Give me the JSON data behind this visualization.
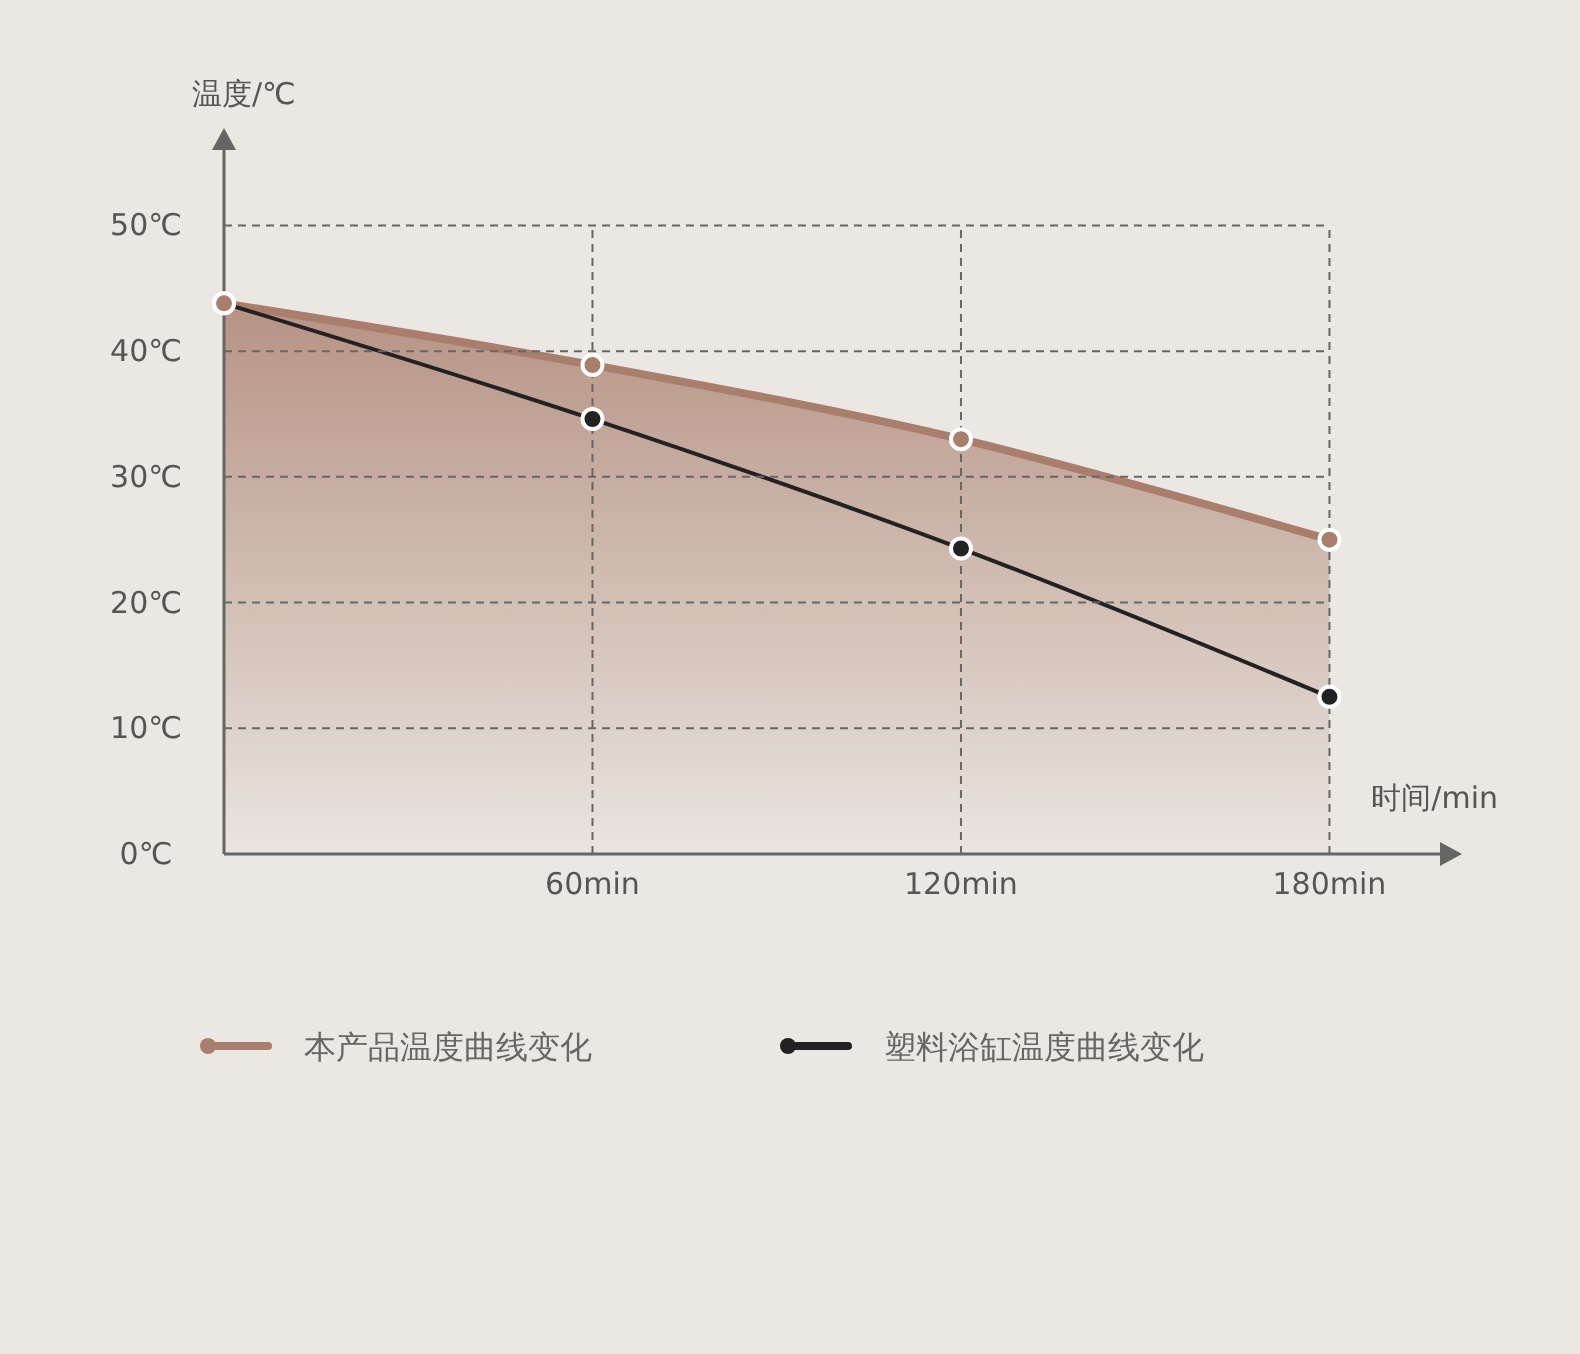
{
  "chart_data": {
    "type": "line",
    "ylabel": "温度/℃",
    "xlabel": "时间/min",
    "x": [
      0,
      60,
      120,
      180
    ],
    "xlim": [
      0,
      198
    ],
    "ylim": [
      0,
      56
    ],
    "xticks": [
      {
        "value": 0,
        "label": null
      },
      {
        "value": 60,
        "label": "60min"
      },
      {
        "value": 120,
        "label": "120min"
      },
      {
        "value": 180,
        "label": "180min"
      }
    ],
    "yticks": [
      {
        "value": 0,
        "label": "0℃"
      },
      {
        "value": 10,
        "label": "10℃"
      },
      {
        "value": 20,
        "label": "20℃"
      },
      {
        "value": 30,
        "label": "30℃"
      },
      {
        "value": 40,
        "label": "40℃"
      },
      {
        "value": 50,
        "label": "50℃"
      }
    ],
    "series": [
      {
        "name": "本产品温度曲线变化",
        "type": "area",
        "color": "#a97e6c",
        "values": [
          43.8,
          38.9,
          33,
          25
        ]
      },
      {
        "name": "塑料浴缸温度曲线变化",
        "type": "line",
        "color": "#222222",
        "values": [
          43.8,
          34.6,
          24.3,
          12.5
        ]
      }
    ],
    "grid": true,
    "legend": "bottom",
    "marker": "circle",
    "line_style": "solid"
  }
}
